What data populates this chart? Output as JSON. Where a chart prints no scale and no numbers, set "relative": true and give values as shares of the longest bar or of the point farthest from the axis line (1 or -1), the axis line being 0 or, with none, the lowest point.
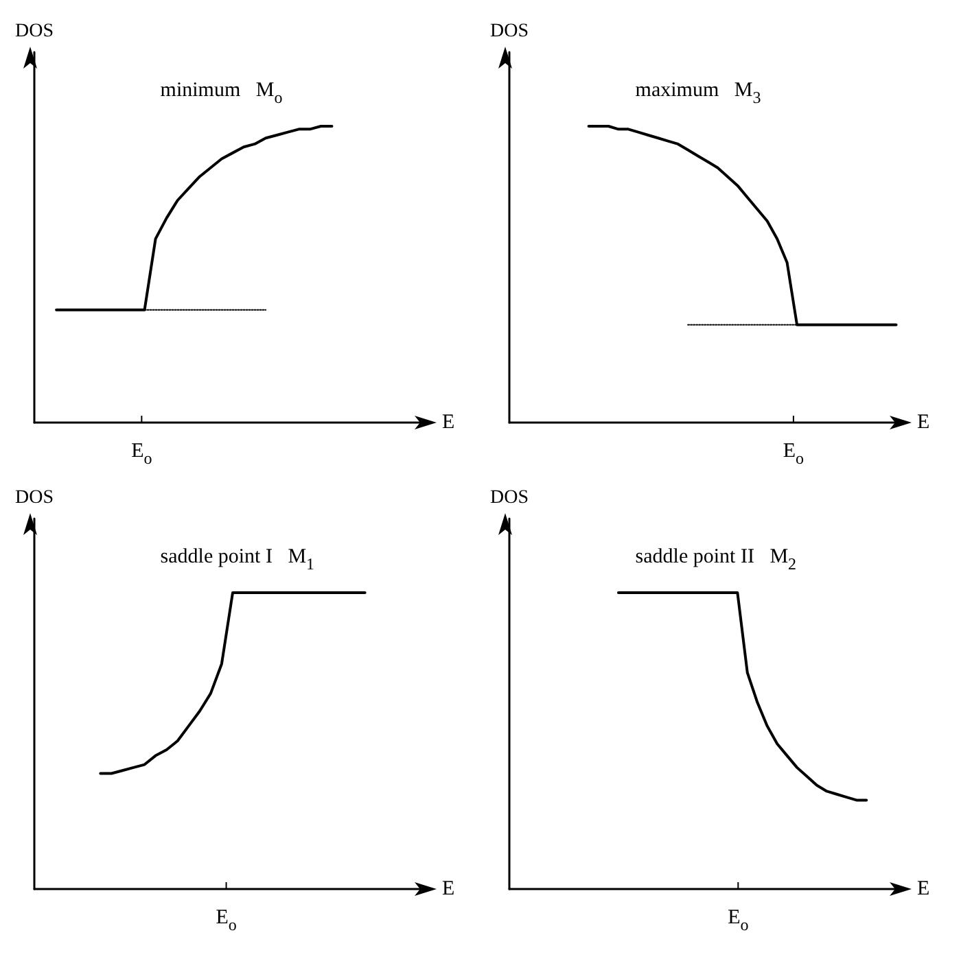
{
  "chart_data": [
    {
      "type": "line",
      "title": "minimum   M$_{o}$",
      "ylabel": "DOS",
      "xlabel": "E",
      "relative": true,
      "annotations": [
        "E$_{o}$"
      ],
      "categories": [
        null,
        null,
        null,
        null,
        null,
        null,
        null,
        null,
        null,
        null,
        null,
        null,
        null,
        null,
        null,
        null,
        null,
        null,
        null,
        null,
        null,
        null,
        null,
        null,
        null,
        null,
        null,
        null,
        null,
        null,
        null,
        null,
        null,
        null,
        null,
        null,
        null
      ],
      "series": [
        {
          "color": "#000000",
          "values": [
            null,
            null,
            0.38,
            0.38,
            0.38,
            0.38,
            0.38,
            0.38,
            0.38,
            0.38,
            0.38,
            0.62,
            0.69,
            0.75,
            0.79,
            0.83,
            0.86,
            0.89,
            0.91,
            0.93,
            0.94,
            0.96,
            0.97,
            0.98,
            0.99,
            0.99,
            1.0,
            1.0,
            null,
            null,
            null,
            null,
            null,
            null,
            null,
            null,
            null
          ]
        },
        {
          "color": "#000000",
          "line_style": "dotted",
          "values": [
            null,
            null,
            null,
            null,
            null,
            null,
            null,
            null,
            null,
            null,
            0.38,
            0.38,
            0.38,
            0.38,
            0.38,
            0.38,
            0.38,
            0.38,
            0.38,
            0.38,
            0.38,
            0.38,
            null,
            null,
            null,
            null,
            null,
            null,
            null,
            null,
            null,
            null,
            null,
            null,
            null,
            null,
            null
          ]
        }
      ]
    },
    {
      "type": "line",
      "title": "maximum   M$_{3}$",
      "ylabel": "DOS",
      "xlabel": "E",
      "relative": true,
      "annotations": [
        "E$_{o}$"
      ],
      "categories": [
        null,
        null,
        null,
        null,
        null,
        null,
        null,
        null,
        null,
        null,
        null,
        null,
        null,
        null,
        null,
        null,
        null,
        null,
        null,
        null,
        null,
        null,
        null,
        null,
        null,
        null,
        null,
        null,
        null,
        null,
        null,
        null,
        null,
        null,
        null,
        null,
        null,
        null,
        null,
        null,
        null
      ],
      "series": [
        {
          "color": "#000000",
          "values": [
            null,
            null,
            null,
            null,
            null,
            null,
            null,
            null,
            1.0,
            1.0,
            1.0,
            0.99,
            0.99,
            0.98,
            0.97,
            0.96,
            0.95,
            0.94,
            0.92,
            0.9,
            0.88,
            0.86,
            0.83,
            0.8,
            0.76,
            0.72,
            0.68,
            0.62,
            0.54,
            0.33,
            0.33,
            0.33,
            0.33,
            0.33,
            0.33,
            0.33,
            0.33,
            0.33,
            0.33,
            0.33,
            null
          ]
        },
        {
          "color": "#000000",
          "line_style": "dotted",
          "values": [
            null,
            null,
            null,
            null,
            null,
            null,
            null,
            null,
            null,
            null,
            null,
            null,
            null,
            null,
            null,
            null,
            null,
            null,
            0.33,
            0.33,
            0.33,
            0.33,
            0.33,
            0.33,
            0.33,
            0.33,
            0.33,
            0.33,
            0.33,
            0.33,
            null,
            null,
            null,
            null,
            null,
            null,
            null,
            null,
            null,
            null,
            null
          ]
        }
      ]
    },
    {
      "type": "line",
      "title": "saddle point I   M$_{1}$",
      "ylabel": "DOS",
      "xlabel": "E",
      "relative": true,
      "annotations": [
        "E$_{o}$"
      ],
      "categories": [
        null,
        null,
        null,
        null,
        null,
        null,
        null,
        null,
        null,
        null,
        null,
        null,
        null,
        null,
        null,
        null,
        null,
        null,
        null,
        null,
        null,
        null,
        null,
        null,
        null,
        null,
        null,
        null,
        null,
        null,
        null,
        null,
        null,
        null,
        null,
        null,
        null
      ],
      "series": [
        {
          "color": "#000000",
          "values": [
            null,
            null,
            null,
            null,
            null,
            null,
            0.39,
            0.39,
            0.4,
            0.41,
            0.42,
            0.45,
            0.47,
            0.5,
            0.55,
            0.6,
            0.66,
            0.76,
            1.0,
            1.0,
            1.0,
            1.0,
            1.0,
            1.0,
            1.0,
            1.0,
            1.0,
            1.0,
            1.0,
            1.0,
            1.0,
            null,
            null,
            null,
            null,
            null,
            null
          ]
        }
      ]
    },
    {
      "type": "line",
      "title": "saddle point II   M$_{2}$",
      "ylabel": "DOS",
      "xlabel": "E",
      "relative": true,
      "annotations": [
        "E$_{o}$"
      ],
      "categories": [
        null,
        null,
        null,
        null,
        null,
        null,
        null,
        null,
        null,
        null,
        null,
        null,
        null,
        null,
        null,
        null,
        null,
        null,
        null,
        null,
        null,
        null,
        null,
        null,
        null,
        null,
        null,
        null,
        null,
        null,
        null,
        null,
        null,
        null,
        null,
        null,
        null,
        null,
        null,
        null,
        null
      ],
      "series": [
        {
          "color": "#000000",
          "values": [
            null,
            null,
            null,
            null,
            null,
            null,
            null,
            null,
            null,
            null,
            null,
            1.0,
            1.0,
            1.0,
            1.0,
            1.0,
            1.0,
            1.0,
            1.0,
            1.0,
            1.0,
            1.0,
            1.0,
            1.0,
            0.73,
            0.63,
            0.55,
            0.49,
            0.45,
            0.41,
            0.38,
            0.35,
            0.33,
            0.32,
            0.31,
            0.3,
            0.3,
            null,
            null,
            null,
            null
          ]
        }
      ]
    }
  ]
}
